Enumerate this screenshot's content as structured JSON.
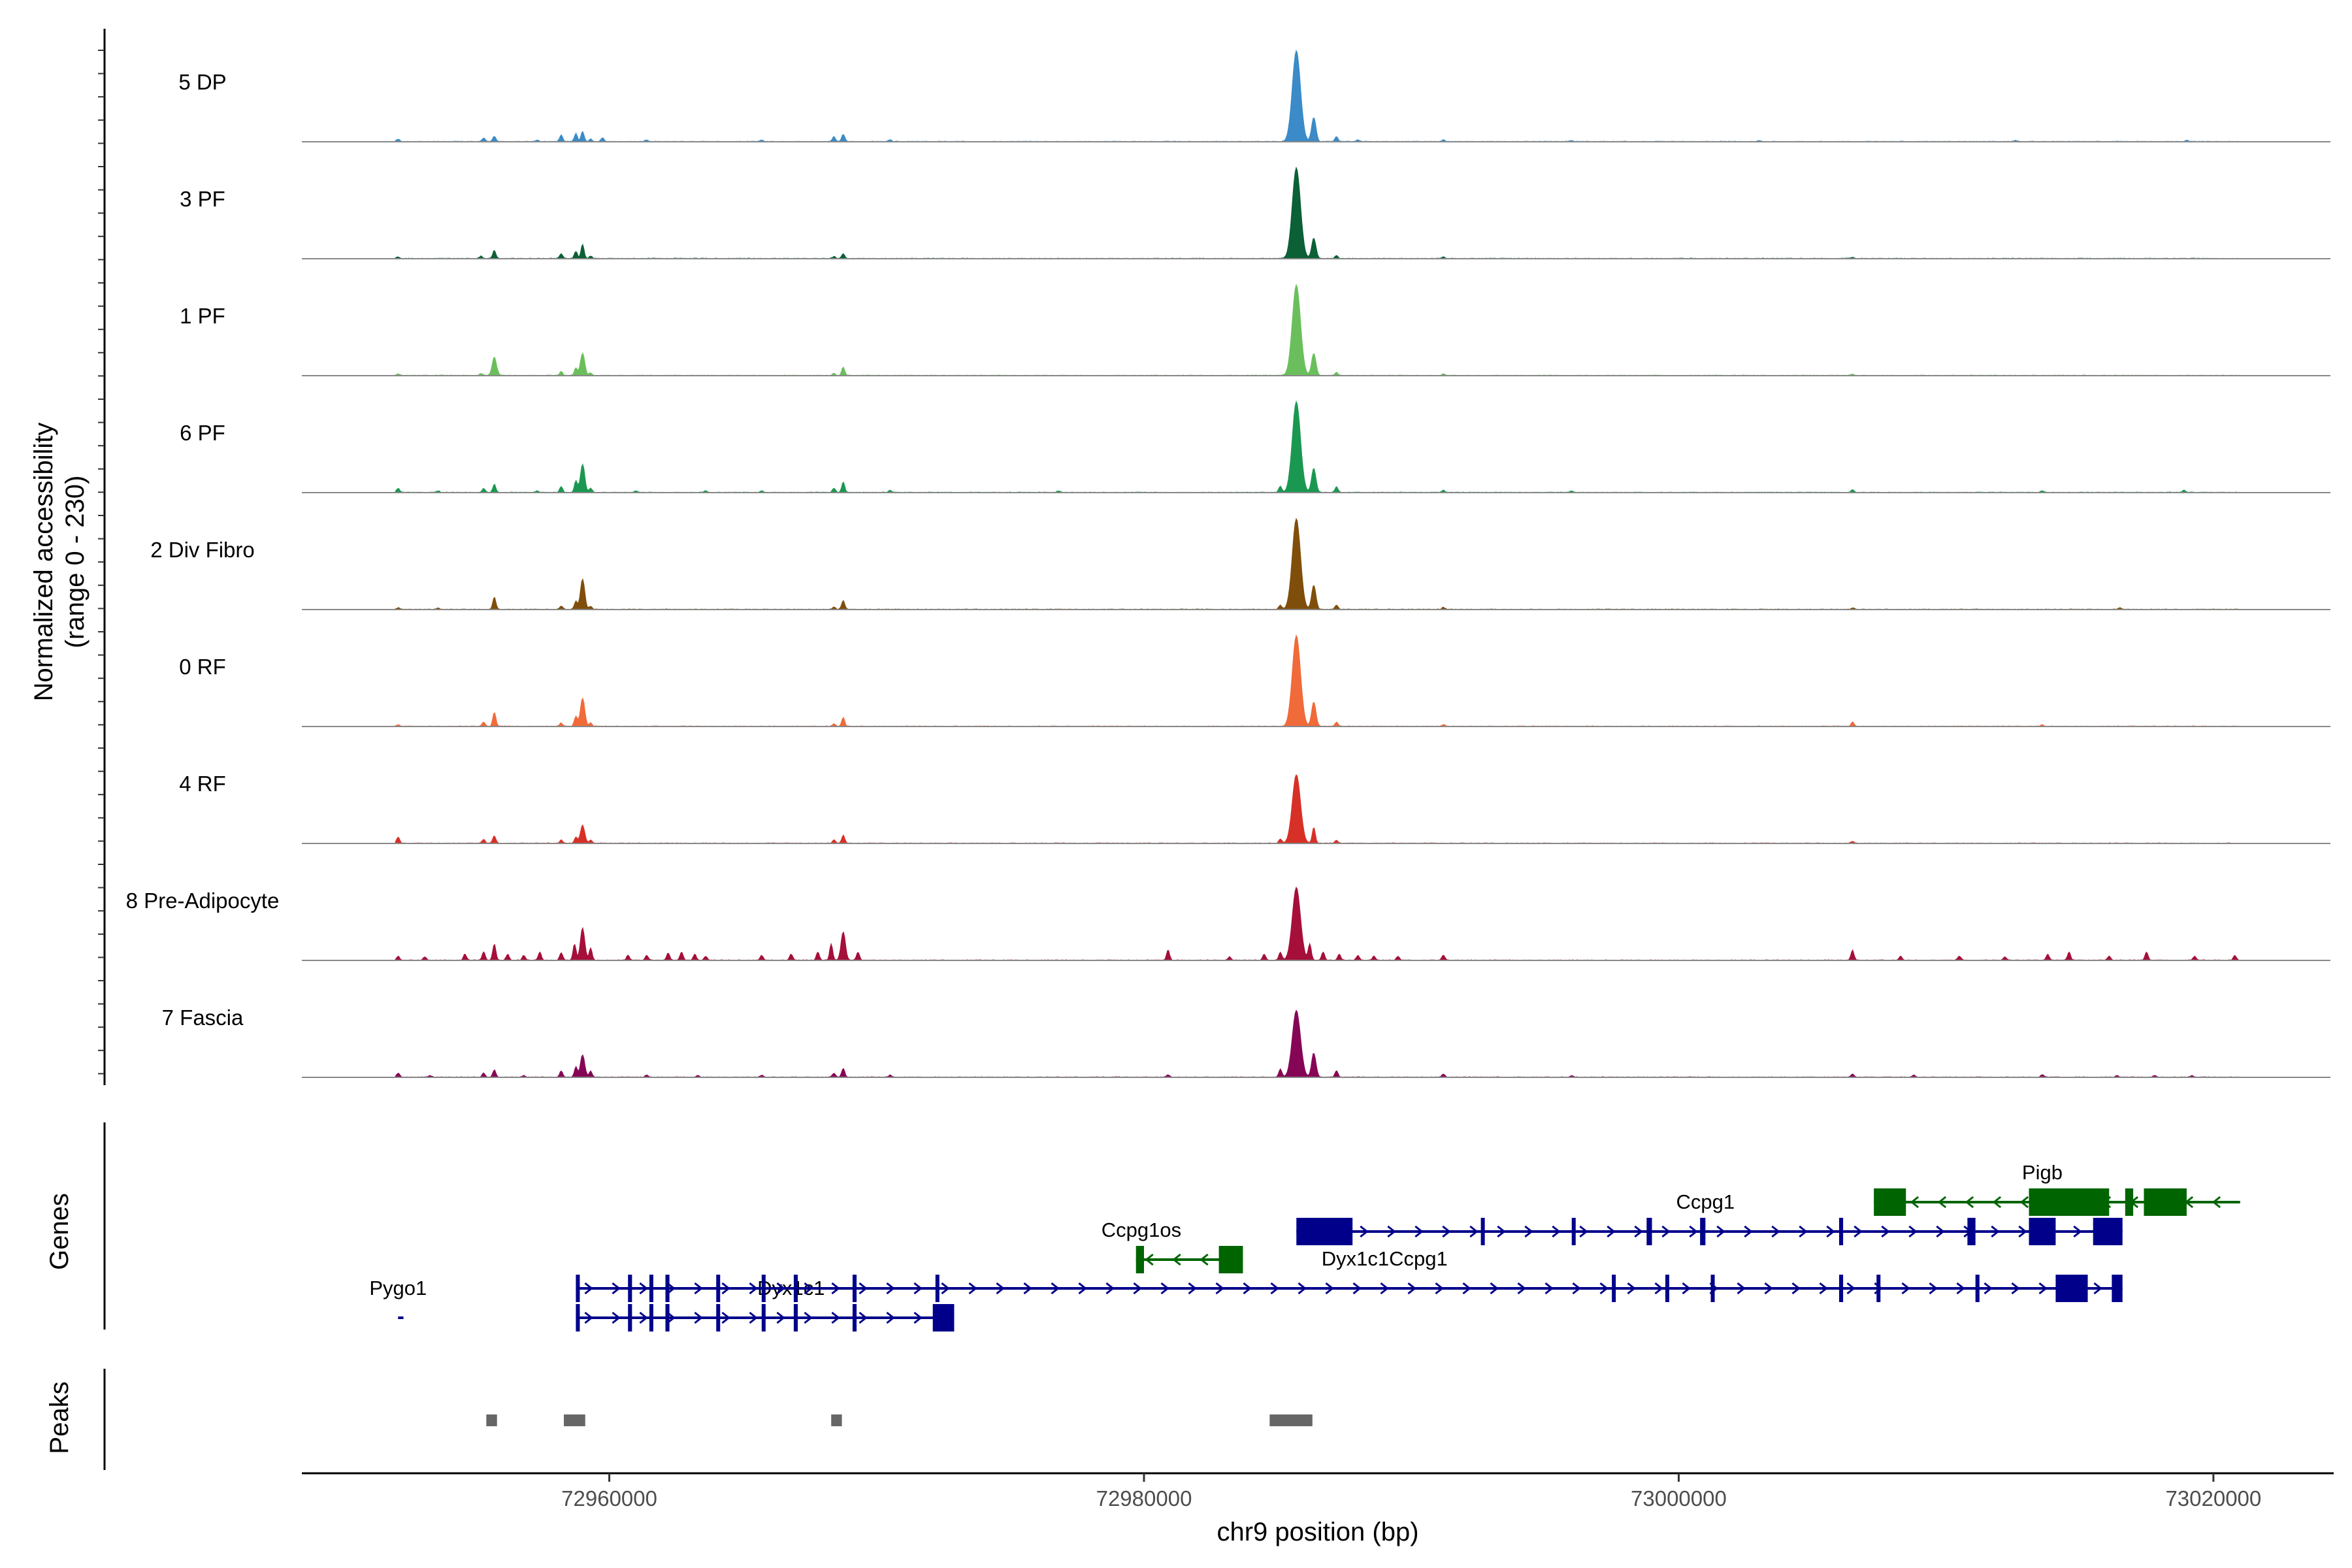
{
  "chart_data": {
    "type": "area",
    "title": "",
    "xlabel": "chr9 position (bp)",
    "ylabel": "Normalized accessibility",
    "ylabel_range": "(range 0 - 230)",
    "ylim": [
      0,
      230
    ],
    "xlim": [
      72948500,
      73024500
    ],
    "x_ticks": [
      {
        "value": 72960000,
        "label": "72960000"
      },
      {
        "value": 72980000,
        "label": "72980000"
      },
      {
        "value": 73000000,
        "label": "73000000"
      },
      {
        "value": 73020000,
        "label": "73020000"
      }
    ],
    "genes_title": "Genes",
    "peaks_title": "Peaks",
    "series": [
      {
        "name": "5 DP",
        "color": "#3a8bc7",
        "peaks": [
          [
            72952100,
            6
          ],
          [
            72955300,
            9
          ],
          [
            72955700,
            13
          ],
          [
            72957300,
            4
          ],
          [
            72958200,
            16
          ],
          [
            72958750,
            20
          ],
          [
            72959000,
            25
          ],
          [
            72959300,
            6
          ],
          [
            72959750,
            9
          ],
          [
            72961400,
            4
          ],
          [
            72965700,
            4
          ],
          [
            72968400,
            12
          ],
          [
            72968750,
            18
          ],
          [
            72970500,
            4
          ],
          [
            72985700,
            225
          ],
          [
            72986350,
            60
          ],
          [
            72987200,
            12
          ],
          [
            72988000,
            4
          ],
          [
            72991200,
            4
          ],
          [
            72996000,
            3
          ],
          [
            73003000,
            3
          ],
          [
            73012600,
            3
          ],
          [
            73019000,
            3
          ]
        ]
      },
      {
        "name": "3 PF",
        "color": "#0b6036",
        "peaks": [
          [
            72952100,
            4
          ],
          [
            72955200,
            6
          ],
          [
            72955700,
            20
          ],
          [
            72958200,
            12
          ],
          [
            72958750,
            18
          ],
          [
            72959000,
            35
          ],
          [
            72959300,
            6
          ],
          [
            72968400,
            5
          ],
          [
            72968750,
            12
          ],
          [
            72985700,
            225
          ],
          [
            72986350,
            50
          ],
          [
            72987200,
            8
          ],
          [
            72991200,
            4
          ],
          [
            73006500,
            3
          ]
        ]
      },
      {
        "name": "1 PF",
        "color": "#6abf5c",
        "peaks": [
          [
            72952100,
            4
          ],
          [
            72955200,
            5
          ],
          [
            72955700,
            45
          ],
          [
            72958200,
            10
          ],
          [
            72958750,
            18
          ],
          [
            72959000,
            55
          ],
          [
            72959300,
            6
          ],
          [
            72968400,
            5
          ],
          [
            72968750,
            20
          ],
          [
            72985700,
            225
          ],
          [
            72986350,
            55
          ],
          [
            72987200,
            8
          ],
          [
            72991200,
            4
          ],
          [
            73006500,
            3
          ]
        ]
      },
      {
        "name": "6 PF",
        "color": "#1a9851",
        "peaks": [
          [
            72952100,
            10
          ],
          [
            72953600,
            4
          ],
          [
            72955300,
            10
          ],
          [
            72955700,
            20
          ],
          [
            72957300,
            4
          ],
          [
            72958200,
            14
          ],
          [
            72958750,
            28
          ],
          [
            72959000,
            70
          ],
          [
            72959300,
            10
          ],
          [
            72961000,
            4
          ],
          [
            72963600,
            4
          ],
          [
            72965700,
            4
          ],
          [
            72968400,
            10
          ],
          [
            72968750,
            25
          ],
          [
            72970500,
            5
          ],
          [
            72976800,
            4
          ],
          [
            72985100,
            15
          ],
          [
            72985700,
            225
          ],
          [
            72986350,
            60
          ],
          [
            72987200,
            14
          ],
          [
            72991200,
            6
          ],
          [
            72996000,
            4
          ],
          [
            73006500,
            6
          ],
          [
            73013600,
            4
          ],
          [
            73018900,
            5
          ]
        ]
      },
      {
        "name": "2 Div Fibro",
        "color": "#7f4e0b",
        "peaks": [
          [
            72952100,
            4
          ],
          [
            72953600,
            3
          ],
          [
            72955700,
            30
          ],
          [
            72958200,
            8
          ],
          [
            72958750,
            20
          ],
          [
            72959000,
            75
          ],
          [
            72959300,
            8
          ],
          [
            72968400,
            6
          ],
          [
            72968750,
            22
          ],
          [
            72985100,
            10
          ],
          [
            72985700,
            225
          ],
          [
            72986350,
            60
          ],
          [
            72987200,
            10
          ],
          [
            72991200,
            5
          ],
          [
            73006500,
            4
          ],
          [
            73016500,
            4
          ]
        ]
      },
      {
        "name": "0 RF",
        "color": "#f06a3a",
        "peaks": [
          [
            72952100,
            4
          ],
          [
            72955300,
            10
          ],
          [
            72955700,
            35
          ],
          [
            72958200,
            8
          ],
          [
            72958750,
            25
          ],
          [
            72959000,
            70
          ],
          [
            72959300,
            8
          ],
          [
            72968400,
            6
          ],
          [
            72968750,
            22
          ],
          [
            72985700,
            225
          ],
          [
            72986350,
            60
          ],
          [
            72987200,
            10
          ],
          [
            72991200,
            4
          ],
          [
            73006500,
            10
          ],
          [
            73013600,
            4
          ]
        ]
      },
      {
        "name": "4 RF",
        "color": "#d73027",
        "peaks": [
          [
            72952100,
            15
          ],
          [
            72955300,
            10
          ],
          [
            72955700,
            18
          ],
          [
            72958200,
            8
          ],
          [
            72958750,
            15
          ],
          [
            72959000,
            45
          ],
          [
            72959300,
            8
          ],
          [
            72968400,
            8
          ],
          [
            72968750,
            20
          ],
          [
            72985100,
            10
          ],
          [
            72985700,
            170
          ],
          [
            72986350,
            40
          ],
          [
            72987200,
            8
          ],
          [
            73006500,
            4
          ]
        ]
      },
      {
        "name": "8 Pre-Adipocyte",
        "color": "#a50f3a",
        "peaks": [
          [
            72952100,
            10
          ],
          [
            72953100,
            8
          ],
          [
            72954600,
            15
          ],
          [
            72955300,
            20
          ],
          [
            72955700,
            40
          ],
          [
            72956200,
            15
          ],
          [
            72956800,
            12
          ],
          [
            72957400,
            20
          ],
          [
            72958200,
            18
          ],
          [
            72958700,
            40
          ],
          [
            72959000,
            80
          ],
          [
            72959300,
            30
          ],
          [
            72960700,
            12
          ],
          [
            72961400,
            12
          ],
          [
            72962200,
            18
          ],
          [
            72962700,
            20
          ],
          [
            72963200,
            15
          ],
          [
            72963600,
            10
          ],
          [
            72965700,
            12
          ],
          [
            72966800,
            15
          ],
          [
            72967800,
            20
          ],
          [
            72968300,
            40
          ],
          [
            72968750,
            70
          ],
          [
            72969300,
            20
          ],
          [
            72980900,
            25
          ],
          [
            72983200,
            8
          ],
          [
            72984500,
            15
          ],
          [
            72985100,
            20
          ],
          [
            72985700,
            180
          ],
          [
            72986200,
            40
          ],
          [
            72986700,
            20
          ],
          [
            72987300,
            15
          ],
          [
            72988000,
            12
          ],
          [
            72988600,
            10
          ],
          [
            72989500,
            10
          ],
          [
            72991200,
            12
          ],
          [
            73006500,
            25
          ],
          [
            73008300,
            10
          ],
          [
            73010500,
            10
          ],
          [
            73012200,
            8
          ],
          [
            73013800,
            15
          ],
          [
            73014600,
            20
          ],
          [
            73016100,
            10
          ],
          [
            73017500,
            20
          ],
          [
            73019300,
            10
          ],
          [
            73020800,
            12
          ]
        ]
      },
      {
        "name": "7 Fascia",
        "color": "#860656",
        "peaks": [
          [
            72952100,
            10
          ],
          [
            72953300,
            4
          ],
          [
            72955300,
            10
          ],
          [
            72955700,
            18
          ],
          [
            72956800,
            4
          ],
          [
            72958200,
            15
          ],
          [
            72958750,
            25
          ],
          [
            72959000,
            55
          ],
          [
            72959300,
            15
          ],
          [
            72961400,
            5
          ],
          [
            72963300,
            4
          ],
          [
            72965700,
            5
          ],
          [
            72968400,
            10
          ],
          [
            72968750,
            22
          ],
          [
            72970500,
            5
          ],
          [
            72980900,
            5
          ],
          [
            72985100,
            20
          ],
          [
            72985700,
            165
          ],
          [
            72986350,
            60
          ],
          [
            72987200,
            15
          ],
          [
            72991200,
            8
          ],
          [
            72996000,
            4
          ],
          [
            73006500,
            8
          ],
          [
            73008800,
            5
          ],
          [
            73013600,
            6
          ],
          [
            73016400,
            4
          ],
          [
            73017800,
            4
          ],
          [
            73019200,
            4
          ]
        ]
      }
    ],
    "genes": [
      {
        "name": "Pygo1",
        "strand": "+",
        "color": "#00008b",
        "row": 4,
        "start": 72952100,
        "end": 72952300,
        "exons": [],
        "label_x": 72952100
      },
      {
        "name": "Dyx1c1",
        "strand": "+",
        "color": "#00008b",
        "row": 4,
        "start": 72958750,
        "end": 72972900,
        "exons": [
          [
            72958750,
            72958850
          ],
          [
            72960700,
            72960850
          ],
          [
            72961500,
            72961600
          ],
          [
            72962100,
            72962250
          ],
          [
            72964000,
            72964100
          ],
          [
            72965700,
            72965800
          ],
          [
            72966900,
            72967050
          ],
          [
            72969100,
            72969250
          ],
          [
            72972100,
            72972900
          ]
        ],
        "label_x": 72966800
      },
      {
        "name": "Dyx1c1Ccpg1",
        "strand": "+",
        "color": "#00008b",
        "row": 3,
        "start": 72958750,
        "end": 73016600,
        "exons": [
          [
            72958750,
            72958850
          ],
          [
            72960700,
            72960850
          ],
          [
            72961500,
            72961600
          ],
          [
            72962100,
            72962250
          ],
          [
            72964000,
            72964100
          ],
          [
            72965700,
            72965800
          ],
          [
            72966900,
            72967050
          ],
          [
            72969100,
            72969250
          ],
          [
            72972200,
            72972300
          ],
          [
            72997500,
            72997600
          ],
          [
            72999500,
            72999600
          ],
          [
            73001200,
            73001300
          ],
          [
            73006000,
            73006150
          ],
          [
            73007400,
            73007500
          ],
          [
            73011100,
            73011250
          ],
          [
            73014100,
            73015300
          ],
          [
            73016200,
            73016600
          ]
        ],
        "label_x": 72989000
      },
      {
        "name": "Ccpg1os",
        "strand": "-",
        "color": "#006400",
        "row": 2,
        "start": 72979700,
        "end": 72983700,
        "exons": [
          [
            72979700,
            72980000
          ],
          [
            72982800,
            72983700
          ]
        ],
        "label_x": 72979900
      },
      {
        "name": "Ccpg1",
        "strand": "+",
        "color": "#00008b",
        "row": 1,
        "start": 72985700,
        "end": 73016600,
        "exons": [
          [
            72985700,
            72987800
          ],
          [
            72992600,
            72992700
          ],
          [
            72996000,
            72996100
          ],
          [
            72998800,
            72999000
          ],
          [
            73000800,
            73001000
          ],
          [
            73006000,
            73006150
          ],
          [
            73010800,
            73011100
          ],
          [
            73013100,
            73014100
          ],
          [
            73015500,
            73016600
          ]
        ],
        "label_x": 73001000
      },
      {
        "name": "Pigb",
        "strand": "-",
        "color": "#006400",
        "row": 0,
        "start": 73007300,
        "end": 73021000,
        "exons": [
          [
            73007300,
            73008500
          ],
          [
            73013100,
            73016100
          ],
          [
            73016700,
            73017000
          ],
          [
            73017400,
            73019000
          ]
        ],
        "label_x": 73013600
      }
    ],
    "peak_regions": [
      [
        72955400,
        72955800
      ],
      [
        72958300,
        72959100
      ],
      [
        72968300,
        72968700
      ],
      [
        72984700,
        72986300
      ]
    ]
  }
}
